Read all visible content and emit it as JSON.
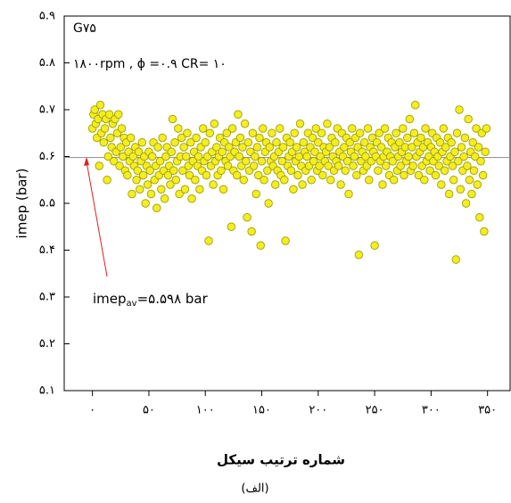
{
  "chart_data": {
    "type": "scatter",
    "title_lines": [
      "G۷۵",
      "۱۸۰۰rpm , ϕ =۰.۹  CR= ۱۰"
    ],
    "y_label": "imep (bar)",
    "x_label": "شماره ترتیب سیکل",
    "caption": "(الف)",
    "annotation": {
      "text": "imep",
      "sub": "av",
      "rest": "=۵.۵۹۸ bar"
    },
    "reference_line": 5.598,
    "color": "#f3ee1f",
    "edge": "#9c9600",
    "grid": false,
    "xlim": [
      -25,
      370
    ],
    "ylim": [
      5.1,
      5.9
    ],
    "xticks": [
      {
        "value": 0,
        "label": "۰"
      },
      {
        "value": 50,
        "label": "۵۰"
      },
      {
        "value": 100,
        "label": "۱۰۰"
      },
      {
        "value": 150,
        "label": "۱۵۰"
      },
      {
        "value": 200,
        "label": "۲۰۰"
      },
      {
        "value": 250,
        "label": "۲۵۰"
      },
      {
        "value": 300,
        "label": "۳۰۰"
      },
      {
        "value": 350,
        "label": "۳۵۰"
      }
    ],
    "yticks": [
      {
        "value": 5.1,
        "label": "۵.۱"
      },
      {
        "value": 5.2,
        "label": "۵.۲"
      },
      {
        "value": 5.3,
        "label": "۵.۳"
      },
      {
        "value": 5.4,
        "label": "۵.۴"
      },
      {
        "value": 5.5,
        "label": "۵.۵"
      },
      {
        "value": 5.6,
        "label": "۵.۶"
      },
      {
        "value": 5.7,
        "label": "۵.۷"
      },
      {
        "value": 5.8,
        "label": "۵.۸"
      },
      {
        "value": 5.9,
        "label": "۵.۹"
      }
    ],
    "x": [
      0,
      1,
      2,
      3,
      4,
      5,
      6,
      7,
      8,
      9,
      10,
      11,
      12,
      13,
      14,
      15,
      16,
      17,
      18,
      19,
      20,
      21,
      22,
      23,
      24,
      25,
      26,
      27,
      28,
      29,
      30,
      31,
      32,
      33,
      34,
      35,
      36,
      37,
      38,
      39,
      40,
      41,
      42,
      43,
      44,
      45,
      46,
      47,
      48,
      49,
      50,
      51,
      52,
      53,
      54,
      55,
      56,
      57,
      58,
      59,
      60,
      61,
      62,
      63,
      64,
      65,
      66,
      67,
      68,
      69,
      70,
      71,
      72,
      73,
      74,
      75,
      76,
      77,
      78,
      79,
      80,
      81,
      82,
      83,
      84,
      85,
      86,
      87,
      88,
      89,
      90,
      91,
      92,
      93,
      94,
      95,
      96,
      97,
      98,
      99,
      100,
      101,
      102,
      103,
      104,
      105,
      106,
      107,
      108,
      109,
      110,
      111,
      112,
      113,
      114,
      115,
      116,
      117,
      118,
      119,
      120,
      121,
      122,
      123,
      124,
      125,
      126,
      127,
      128,
      129,
      130,
      131,
      132,
      133,
      134,
      135,
      136,
      137,
      138,
      139,
      140,
      141,
      142,
      143,
      144,
      145,
      146,
      147,
      148,
      149,
      150,
      151,
      152,
      153,
      154,
      155,
      156,
      157,
      158,
      159,
      160,
      161,
      162,
      163,
      164,
      165,
      166,
      167,
      168,
      169,
      170,
      171,
      172,
      173,
      174,
      175,
      176,
      177,
      178,
      179,
      180,
      181,
      182,
      183,
      184,
      185,
      186,
      187,
      188,
      189,
      190,
      191,
      192,
      193,
      194,
      195,
      196,
      197,
      198,
      199,
      200,
      201,
      202,
      203,
      204,
      205,
      206,
      207,
      208,
      209,
      210,
      211,
      212,
      213,
      214,
      215,
      216,
      217,
      218,
      219,
      220,
      221,
      222,
      223,
      224,
      225,
      226,
      227,
      228,
      229,
      230,
      231,
      232,
      233,
      234,
      235,
      236,
      237,
      238,
      239,
      240,
      241,
      242,
      243,
      244,
      245,
      246,
      247,
      248,
      249,
      250,
      251,
      252,
      253,
      254,
      255,
      256,
      257,
      258,
      259,
      260,
      261,
      262,
      263,
      264,
      265,
      266,
      267,
      268,
      269,
      270,
      271,
      272,
      273,
      274,
      275,
      276,
      277,
      278,
      279,
      280,
      281,
      282,
      283,
      284,
      285,
      286,
      287,
      288,
      289,
      290,
      291,
      292,
      293,
      294,
      295,
      296,
      297,
      298,
      299,
      300,
      301,
      302,
      303,
      304,
      305,
      306,
      307,
      308,
      309,
      310,
      311,
      312,
      313,
      314,
      315,
      316,
      317,
      318,
      319,
      320,
      321,
      322,
      323,
      324,
      325,
      326,
      327,
      328,
      329,
      330,
      331,
      332,
      333,
      334,
      335,
      336,
      337,
      338,
      339,
      340,
      341,
      342,
      343,
      344,
      345,
      346,
      347,
      348,
      349
    ],
    "values": [
      5.66,
      5.69,
      5.7,
      5.67,
      5.64,
      5.68,
      5.58,
      5.71,
      5.65,
      5.69,
      5.63,
      5.66,
      5.68,
      5.55,
      5.6,
      5.69,
      5.64,
      5.62,
      5.67,
      5.59,
      5.68,
      5.61,
      5.65,
      5.69,
      5.58,
      5.62,
      5.66,
      5.6,
      5.64,
      5.57,
      5.63,
      5.56,
      5.61,
      5.59,
      5.64,
      5.52,
      5.6,
      5.58,
      5.62,
      5.55,
      5.57,
      5.61,
      5.53,
      5.59,
      5.63,
      5.56,
      5.6,
      5.5,
      5.58,
      5.54,
      5.61,
      5.57,
      5.52,
      5.6,
      5.63,
      5.55,
      5.58,
      5.49,
      5.62,
      5.56,
      5.59,
      5.53,
      5.64,
      5.57,
      5.51,
      5.6,
      5.62,
      5.56,
      5.58,
      5.54,
      5.61,
      5.68,
      5.57,
      5.63,
      5.55,
      5.59,
      5.66,
      5.52,
      5.6,
      5.64,
      5.57,
      5.62,
      5.53,
      5.6,
      5.65,
      5.58,
      5.56,
      5.63,
      5.51,
      5.59,
      5.61,
      5.55,
      5.64,
      5.58,
      5.6,
      5.53,
      5.62,
      5.57,
      5.66,
      5.59,
      5.63,
      5.56,
      5.6,
      5.42,
      5.65,
      5.58,
      5.61,
      5.54,
      5.67,
      5.59,
      5.62,
      5.56,
      5.6,
      5.64,
      5.57,
      5.61,
      5.53,
      5.63,
      5.59,
      5.65,
      5.58,
      5.62,
      5.6,
      5.45,
      5.66,
      5.57,
      5.61,
      5.63,
      5.56,
      5.69,
      5.6,
      5.64,
      5.58,
      5.62,
      5.55,
      5.67,
      5.59,
      5.47,
      5.63,
      5.57,
      5.61,
      5.44,
      5.65,
      5.58,
      5.6,
      5.52,
      5.62,
      5.56,
      5.64,
      5.41,
      5.59,
      5.66,
      5.55,
      5.61,
      5.63,
      5.57,
      5.5,
      5.62,
      5.59,
      5.65,
      5.58,
      5.6,
      5.54,
      5.63,
      5.57,
      5.61,
      5.66,
      5.56,
      5.59,
      5.62,
      5.55,
      5.42,
      5.64,
      5.58,
      5.6,
      5.63,
      5.57,
      5.61,
      5.53,
      5.65,
      5.59,
      5.62,
      5.56,
      5.6,
      5.67,
      5.58,
      5.54,
      5.63,
      5.61,
      5.57,
      5.6,
      5.65,
      5.58,
      5.62,
      5.55,
      5.64,
      5.59,
      5.61,
      5.66,
      5.57,
      5.63,
      5.58,
      5.6,
      5.65,
      5.56,
      5.62,
      5.59,
      5.61,
      5.67,
      5.58,
      5.62,
      5.55,
      5.64,
      5.6,
      5.57,
      5.63,
      5.59,
      5.66,
      5.58,
      5.61,
      5.54,
      5.65,
      5.6,
      5.62,
      5.57,
      5.64,
      5.59,
      5.52,
      5.63,
      5.61,
      5.66,
      5.58,
      5.6,
      5.64,
      5.56,
      5.62,
      5.39,
      5.65,
      5.59,
      5.61,
      5.57,
      5.63,
      5.6,
      5.58,
      5.66,
      5.55,
      5.62,
      5.59,
      5.64,
      5.61,
      5.41,
      5.6,
      5.63,
      5.57,
      5.65,
      5.59,
      5.62,
      5.54,
      5.6,
      5.66,
      5.58,
      5.61,
      5.64,
      5.56,
      5.6,
      5.63,
      5.59,
      5.55,
      5.62,
      5.65,
      5.57,
      5.6,
      5.63,
      5.58,
      5.61,
      5.66,
      5.56,
      5.62,
      5.59,
      5.64,
      5.6,
      5.68,
      5.57,
      5.62,
      5.58,
      5.65,
      5.71,
      5.6,
      5.63,
      5.56,
      5.61,
      5.64,
      5.58,
      5.62,
      5.55,
      5.66,
      5.59,
      5.63,
      5.6,
      5.57,
      5.62,
      5.65,
      5.59,
      5.61,
      5.56,
      5.64,
      5.6,
      5.58,
      5.63,
      5.54,
      5.61,
      5.66,
      5.57,
      5.62,
      5.59,
      5.64,
      5.52,
      5.6,
      5.63,
      5.58,
      5.55,
      5.61,
      5.38,
      5.65,
      5.59,
      5.7,
      5.53,
      5.62,
      5.57,
      5.6,
      5.64,
      5.5,
      5.58,
      5.68,
      5.55,
      5.61,
      5.52,
      5.63,
      5.57,
      5.6,
      5.66,
      5.54,
      5.62,
      5.47,
      5.59,
      5.65,
      5.56,
      5.44,
      5.61,
      5.66
    ]
  }
}
